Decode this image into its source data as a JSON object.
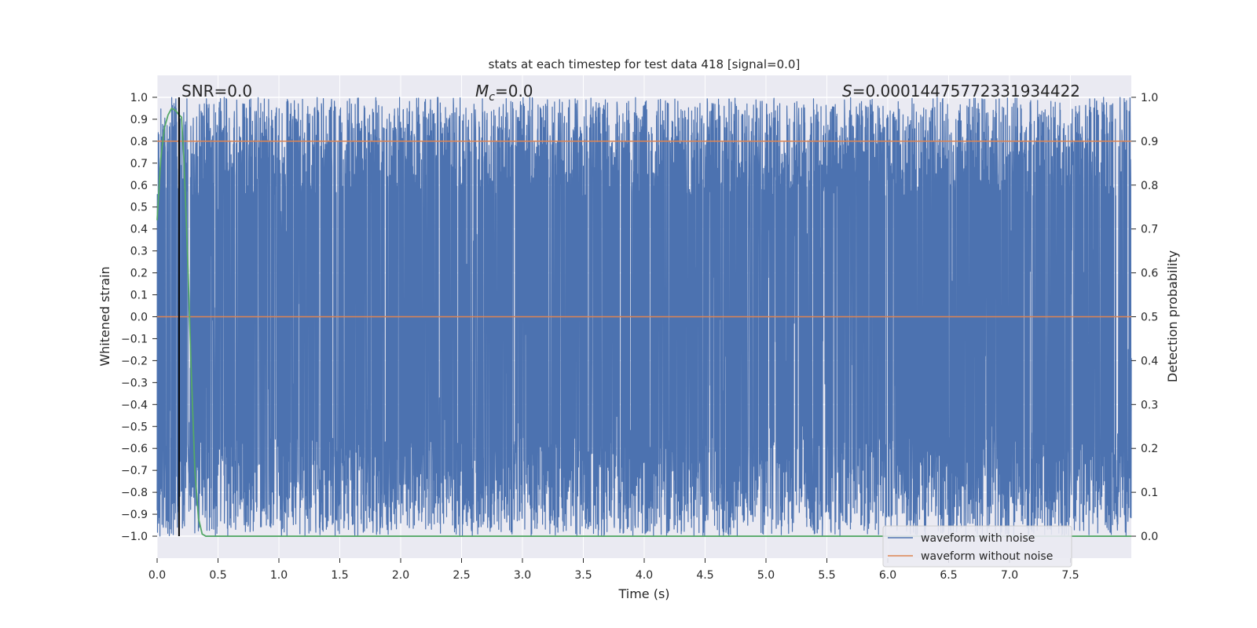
{
  "chart_data": {
    "type": "line",
    "title": "stats at each timestep for test data 418 [signal=0.0]",
    "xlabel": "Time (s)",
    "ylabel_left": "Whitened strain",
    "ylabel_right": "Detection probability",
    "xlim": [
      0.0,
      8.0
    ],
    "ylim_left": [
      -1.1,
      1.1
    ],
    "ylim_right": [
      -0.05,
      1.05
    ],
    "x_ticks": [
      "0.0",
      "0.5",
      "1.0",
      "1.5",
      "2.0",
      "2.5",
      "3.0",
      "3.5",
      "4.0",
      "4.5",
      "5.0",
      "5.5",
      "6.0",
      "6.5",
      "7.0",
      "7.5"
    ],
    "y_ticks_left": [
      "1.0",
      "0.9",
      "0.8",
      "0.7",
      "0.6",
      "0.5",
      "0.4",
      "0.3",
      "0.2",
      "0.1",
      "0.0",
      "−0.1",
      "−0.2",
      "−0.3",
      "−0.4",
      "−0.5",
      "−0.6",
      "−0.7",
      "−0.8",
      "−0.9",
      "−1.0"
    ],
    "y_ticks_right": [
      "1.0",
      "0.9",
      "0.8",
      "0.7",
      "0.6",
      "0.5",
      "0.4",
      "0.3",
      "0.2",
      "0.1",
      "0.0"
    ],
    "grid": true,
    "legend_position": "lower-right",
    "annotations": {
      "snr": "SNR=0.0",
      "mc_symbol": "M",
      "mc_sub": "c",
      "mc_value": "=0.0",
      "s_symbol": "S",
      "s_value": "=0.00014475772331934422"
    },
    "series": [
      {
        "name": "waveform with noise",
        "color": "#4c72b0",
        "axis": "left",
        "description_range": [
          -1.0,
          1.0
        ],
        "sample_rate_hz": 2048
      },
      {
        "name": "waveform without noise",
        "color": "#dd8452",
        "axis": "left",
        "constant": 0.0
      },
      {
        "color": "#55a868",
        "axis": "right",
        "x": [
          0.0,
          0.03,
          0.06,
          0.09,
          0.12,
          0.15,
          0.18,
          0.2,
          0.22,
          0.25,
          0.28,
          0.31,
          0.34,
          0.37,
          0.4,
          1.0,
          2.0,
          3.0,
          4.0,
          5.0,
          6.0,
          7.0,
          8.0
        ],
        "values": [
          0.72,
          0.86,
          0.93,
          0.96,
          0.975,
          0.97,
          0.96,
          0.955,
          0.86,
          0.64,
          0.38,
          0.15,
          0.04,
          0.005,
          0.0,
          0.0,
          0.0,
          0.0,
          0.0,
          0.0,
          0.0,
          0.0,
          0.0
        ]
      },
      {
        "color": "#dd8452",
        "axis": "right",
        "constant": 0.9
      }
    ],
    "vertical_line_x": 0.18,
    "vertical_line_color": "#000000"
  }
}
